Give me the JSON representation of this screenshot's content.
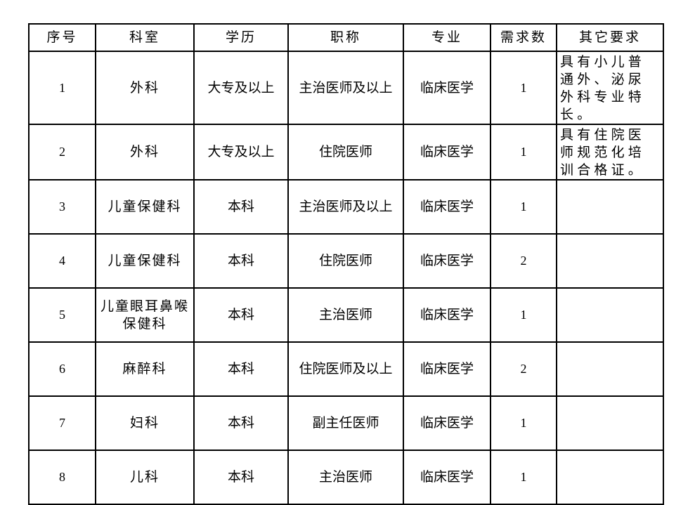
{
  "table": {
    "headers": [
      "序号",
      "科室",
      "学历",
      "职称",
      "专业",
      "需求数",
      "其它要求"
    ],
    "rows": [
      {
        "no": "1",
        "dept": "外科",
        "edu": "大专及以上",
        "title": "主治医师及以上",
        "major": "临床医学",
        "count": "1",
        "note": "具有小儿普通外、泌尿外科专业特长。"
      },
      {
        "no": "2",
        "dept": "外科",
        "edu": "大专及以上",
        "title": "住院医师",
        "major": "临床医学",
        "count": "1",
        "note": "具有住院医师规范化培训合格证。"
      },
      {
        "no": "3",
        "dept": "儿童保健科",
        "edu": "本科",
        "title": "主治医师及以上",
        "major": "临床医学",
        "count": "1",
        "note": ""
      },
      {
        "no": "4",
        "dept": "儿童保健科",
        "edu": "本科",
        "title": "住院医师",
        "major": "临床医学",
        "count": "2",
        "note": ""
      },
      {
        "no": "5",
        "dept": "儿童眼耳鼻喉保健科",
        "edu": "本科",
        "title": "主治医师",
        "major": "临床医学",
        "count": "1",
        "note": ""
      },
      {
        "no": "6",
        "dept": "麻醉科",
        "edu": "本科",
        "title": "住院医师及以上",
        "major": "临床医学",
        "count": "2",
        "note": ""
      },
      {
        "no": "7",
        "dept": "妇科",
        "edu": "本科",
        "title": "副主任医师",
        "major": "临床医学",
        "count": "1",
        "note": ""
      },
      {
        "no": "8",
        "dept": "儿科",
        "edu": "本科",
        "title": "主治医师",
        "major": "临床医学",
        "count": "1",
        "note": ""
      }
    ]
  }
}
